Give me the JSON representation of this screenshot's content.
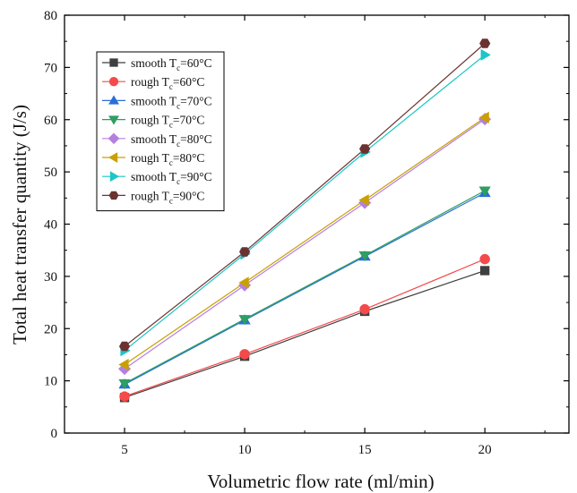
{
  "chart_data": {
    "type": "line",
    "title": "",
    "xlabel": "Volumetric flow rate (ml/min)",
    "ylabel": "Total heat transfer quantity (J/s)",
    "x": [
      5,
      10,
      15,
      20
    ],
    "x_ticks": [
      "5",
      "10",
      "15",
      "20"
    ],
    "xlim": [
      2.5,
      23.5
    ],
    "ylim": [
      0,
      80
    ],
    "y_ticks": [
      "0",
      "10",
      "20",
      "30",
      "40",
      "50",
      "60",
      "70",
      "80"
    ],
    "grid": false,
    "legend_position": "top-left",
    "series": [
      {
        "name": "smooth T",
        "sub": "c",
        "suffix": "=60°C",
        "marker": "square",
        "color": "#3f3f3f",
        "values": [
          6.8,
          14.7,
          23.3,
          31.1
        ]
      },
      {
        "name": "rough T",
        "sub": "c",
        "suffix": "=60°C",
        "marker": "circle",
        "color": "#f44a4a",
        "values": [
          7.0,
          15.1,
          23.7,
          33.3
        ]
      },
      {
        "name": "smooth T",
        "sub": "c",
        "suffix": "=70°C",
        "marker": "triangle-up",
        "color": "#2a6fd6",
        "values": [
          9.3,
          21.6,
          33.8,
          46.0
        ]
      },
      {
        "name": "rough T",
        "sub": "c",
        "suffix": "=70°C",
        "marker": "triangle-down",
        "color": "#2e9e61",
        "values": [
          9.5,
          21.8,
          34.0,
          46.4
        ]
      },
      {
        "name": "smooth T",
        "sub": "c",
        "suffix": "=80°C",
        "marker": "diamond",
        "color": "#b57fe0",
        "values": [
          12.3,
          28.3,
          44.1,
          60.1
        ]
      },
      {
        "name": "rough T",
        "sub": "c",
        "suffix": "=80°C",
        "marker": "triangle-left",
        "color": "#c9a000",
        "values": [
          13.1,
          28.8,
          44.6,
          60.4
        ]
      },
      {
        "name": "smooth T",
        "sub": "c",
        "suffix": "=90°C",
        "marker": "triangle-right",
        "color": "#1cc6c6",
        "values": [
          15.8,
          34.3,
          53.8,
          72.4
        ]
      },
      {
        "name": "rough T",
        "sub": "c",
        "suffix": "=90°C",
        "marker": "hexagon",
        "color": "#6b3330",
        "values": [
          16.6,
          34.7,
          54.4,
          74.6
        ]
      }
    ]
  }
}
